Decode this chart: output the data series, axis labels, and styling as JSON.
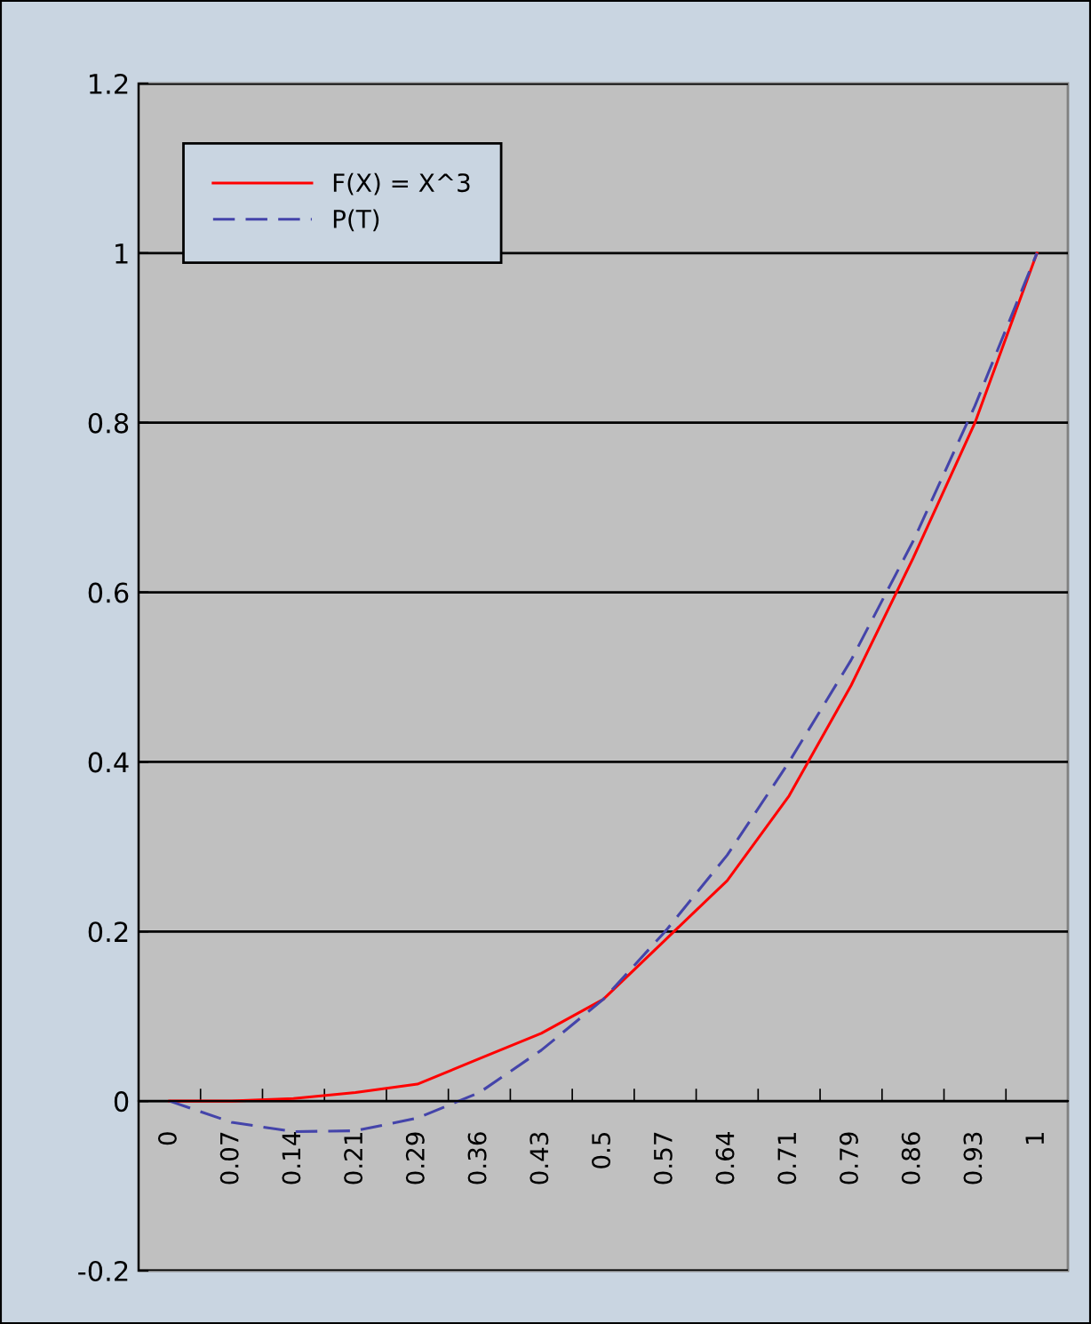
{
  "chart_data": {
    "type": "line",
    "categories": [
      "0",
      "0.07",
      "0.14",
      "0.21",
      "0.29",
      "0.36",
      "0.43",
      "0.5",
      "0.57",
      "0.64",
      "0.71",
      "0.79",
      "0.86",
      "0.93",
      "1"
    ],
    "series": [
      {
        "name": "F(X) = X^3",
        "color": "#ff0000",
        "line_style": "solid",
        "values": [
          0,
          0.0,
          0.003,
          0.01,
          0.02,
          0.05,
          0.08,
          0.12,
          0.19,
          0.26,
          0.36,
          0.49,
          0.64,
          0.8,
          1.0
        ]
      },
      {
        "name": "P(T)",
        "color": "#4444aa",
        "line_style": "dashed",
        "values": [
          0,
          -0.025,
          -0.036,
          -0.035,
          -0.02,
          0.01,
          0.06,
          0.12,
          0.2,
          0.29,
          0.4,
          0.52,
          0.66,
          0.82,
          1.0
        ]
      }
    ],
    "ylim": [
      -0.2,
      1.2
    ],
    "yticks": [
      -0.2,
      0,
      0.2,
      0.4,
      0.6,
      0.8,
      1,
      1.2
    ],
    "grid": "y",
    "legend": "top left",
    "marker": "none"
  }
}
